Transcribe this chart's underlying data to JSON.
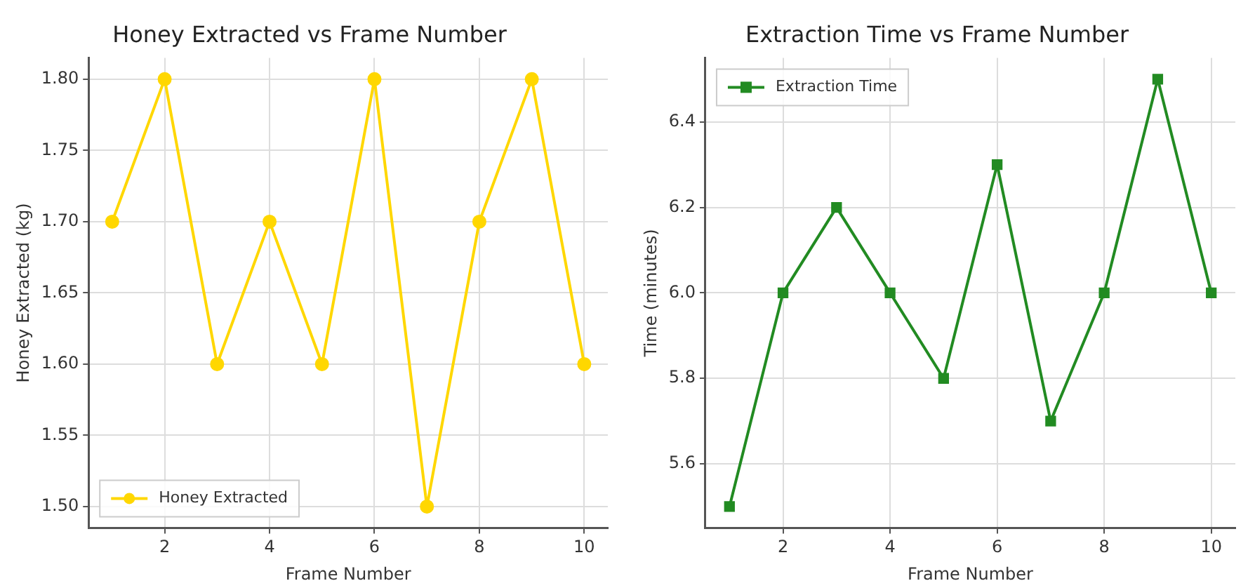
{
  "chart_data": [
    {
      "type": "line",
      "title": "Honey Extracted vs Frame Number",
      "xlabel": "Frame Number",
      "ylabel": "Honey Extracted (kg)",
      "x": [
        1,
        2,
        3,
        4,
        5,
        6,
        7,
        8,
        9,
        10
      ],
      "xlim": [
        0.55,
        10.45
      ],
      "xticks": [
        2,
        4,
        6,
        8,
        10
      ],
      "ylim": [
        1.485,
        1.815
      ],
      "yticks": [
        {
          "value": 1.5,
          "label": "1.50"
        },
        {
          "value": 1.55,
          "label": "1.55"
        },
        {
          "value": 1.6,
          "label": "1.60"
        },
        {
          "value": 1.65,
          "label": "1.65"
        },
        {
          "value": 1.7,
          "label": "1.70"
        },
        {
          "value": 1.75,
          "label": "1.75"
        },
        {
          "value": 1.8,
          "label": "1.80"
        }
      ],
      "grid": true,
      "legend": "bottom left",
      "marker": "circle",
      "series": [
        {
          "name": "Honey Extracted",
          "color": "#ffd700",
          "values": [
            1.7,
            1.8,
            1.6,
            1.7,
            1.6,
            1.8,
            1.5,
            1.7,
            1.8,
            1.6
          ]
        }
      ]
    },
    {
      "type": "line",
      "title": "Extraction Time vs Frame Number",
      "xlabel": "Frame Number",
      "ylabel": "Time (minutes)",
      "x": [
        1,
        2,
        3,
        4,
        5,
        6,
        7,
        8,
        9,
        10
      ],
      "xlim": [
        0.55,
        10.45
      ],
      "xticks": [
        2,
        4,
        6,
        8,
        10
      ],
      "ylim": [
        5.45,
        6.55
      ],
      "yticks": [
        {
          "value": 5.6,
          "label": "5.6"
        },
        {
          "value": 5.8,
          "label": "5.8"
        },
        {
          "value": 6.0,
          "label": "6.0"
        },
        {
          "value": 6.2,
          "label": "6.2"
        },
        {
          "value": 6.4,
          "label": "6.4"
        }
      ],
      "grid": true,
      "legend": "top left",
      "marker": "square",
      "series": [
        {
          "name": "Extraction Time",
          "color": "#228b22",
          "values": [
            5.5,
            6.0,
            6.2,
            6.0,
            5.8,
            6.3,
            5.7,
            6.0,
            6.5,
            6.0
          ]
        }
      ]
    }
  ]
}
